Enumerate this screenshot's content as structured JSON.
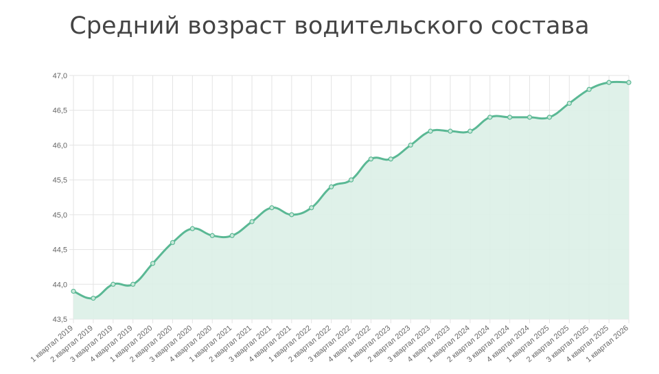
{
  "chart_data": {
    "type": "area",
    "title": "Средний возраст водительского состава",
    "xlabel": "",
    "ylabel": "",
    "ylim": [
      43.5,
      47.0
    ],
    "yticks": [
      "43,5",
      "44,0",
      "44,5",
      "45,0",
      "45,5",
      "46,0",
      "46,5",
      "47,0"
    ],
    "grid": true,
    "categories": [
      "1 квартал 2019",
      "2 квартал 2019",
      "3 квартал 2019",
      "4 квартал 2019",
      "1 квартал 2020",
      "2 квартал 2020",
      "3 квартал 2020",
      "4 квартал 2020",
      "1 квартал 2021",
      "2 квартал 2021",
      "3 квартал 2021",
      "4 квартал 2021",
      "1 квартал 2022",
      "2 квартал 2022",
      "3 квартал 2022",
      "4 квартал 2022",
      "1 квартал 2023",
      "2 квартал 2023",
      "3 квартал 2023",
      "4 квартал 2023",
      "1 квартал 2024",
      "2 квартал 2024",
      "3 квартал 2024",
      "4 квартал 2024",
      "1 квартал 2025",
      "2 квартал 2025",
      "3 квартал 2025",
      "4 квартал 2025",
      "1 квартал 2026"
    ],
    "values": [
      43.9,
      43.8,
      44.0,
      44.0,
      44.3,
      44.6,
      44.8,
      44.7,
      44.7,
      44.9,
      45.1,
      45.0,
      45.1,
      45.4,
      45.5,
      45.8,
      45.8,
      46.0,
      46.2,
      46.2,
      46.2,
      46.4,
      46.4,
      46.4,
      46.4,
      46.6,
      46.8,
      46.9,
      46.9
    ],
    "colors": {
      "line": "#5ab894",
      "fill": "#dcefe7"
    }
  }
}
